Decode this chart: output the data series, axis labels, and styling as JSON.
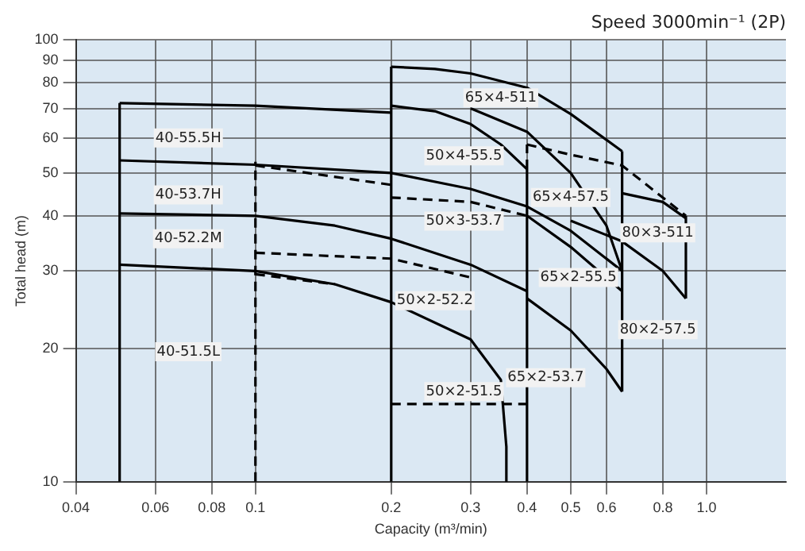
{
  "chart_data": {
    "type": "line",
    "title": "Speed 3000min⁻¹ (2P)",
    "xlabel": "Capacity (m³/min)",
    "ylabel": "Total head (m)",
    "log": "xy",
    "xlim": [
      0.04,
      1.5
    ],
    "ylim": [
      10,
      100
    ],
    "xticks": [
      0.04,
      0.06,
      0.08,
      0.1,
      0.2,
      0.3,
      0.4,
      0.5,
      0.6,
      0.8,
      {
        "value": 1,
        "label": "1.0"
      }
    ],
    "yticks": [
      10,
      20,
      30,
      40,
      50,
      60,
      70,
      80,
      90,
      100
    ],
    "grid": true,
    "legend": false,
    "marker": "none",
    "series": [
      {
        "color": "#000000",
        "line_style": "solid",
        "x": [
          0.05,
          0.1,
          0.2
        ],
        "values": [
          72,
          71,
          68.5
        ]
      },
      {
        "color": "#000000",
        "line_style": "solid",
        "x": [
          0.2,
          0.25,
          0.3,
          0.35,
          0.4
        ],
        "values": [
          71,
          69,
          64.5,
          58,
          51
        ]
      },
      {
        "color": "#000000",
        "line_style": "solid",
        "x": [
          0.2,
          0.25,
          0.3,
          0.4,
          0.5,
          0.65
        ],
        "values": [
          87,
          86,
          84,
          78,
          68,
          56
        ]
      },
      {
        "color": "#000000",
        "line_style": "dashed",
        "x": [
          0.4,
          0.5,
          0.65,
          0.9
        ],
        "values": [
          58,
          55,
          52,
          40
        ]
      },
      {
        "color": "#000000",
        "line_style": "solid",
        "x": [
          0.3,
          0.4,
          0.5,
          0.6,
          0.65
        ],
        "values": [
          70,
          62,
          50,
          38,
          30
        ]
      },
      {
        "color": "#000000",
        "line_style": "solid",
        "x": [
          0.05,
          0.1,
          0.2,
          0.3,
          0.4,
          0.5,
          0.65
        ],
        "values": [
          53.4,
          52.2,
          50,
          46,
          42,
          37,
          30
        ]
      },
      {
        "color": "#000000",
        "line_style": "dashed",
        "x": [
          0.1,
          0.2
        ],
        "values": [
          52,
          47
        ]
      },
      {
        "color": "#000000",
        "line_style": "dashed",
        "x": [
          0.2,
          0.3,
          0.4
        ],
        "values": [
          44,
          43,
          40
        ]
      },
      {
        "color": "#000000",
        "line_style": "solid",
        "x": [
          0.05,
          0.1,
          0.15,
          0.2,
          0.3,
          0.4
        ],
        "values": [
          40.5,
          40,
          38,
          35.5,
          31,
          27
        ]
      },
      {
        "color": "#000000",
        "line_style": "dashed",
        "x": [
          0.1,
          0.2,
          0.3
        ],
        "values": [
          33,
          32,
          29
        ]
      },
      {
        "color": "#000000",
        "line_style": "solid",
        "x": [
          0.05,
          0.1,
          0.15,
          0.2,
          0.3,
          0.35,
          0.36,
          0.36
        ],
        "values": [
          31,
          30,
          28,
          25.5,
          21,
          17,
          12,
          10
        ]
      },
      {
        "color": "#000000",
        "line_style": "dashed",
        "x": [
          0.1,
          0.15
        ],
        "values": [
          29.5,
          28
        ]
      },
      {
        "color": "#000000",
        "line_style": "solid",
        "x": [
          0.4,
          0.5,
          0.6,
          0.65
        ],
        "values": [
          26,
          22,
          18,
          16
        ]
      },
      {
        "color": "#000000",
        "line_style": "solid",
        "x": [
          0.4,
          0.5,
          0.65
        ],
        "values": [
          40,
          34,
          27
        ]
      },
      {
        "color": "#000000",
        "line_style": "solid",
        "x": [
          0.65,
          0.8,
          0.9
        ],
        "values": [
          45,
          43,
          39.5
        ]
      },
      {
        "color": "#000000",
        "line_style": "solid",
        "x": [
          0.5,
          0.65,
          0.8,
          0.9
        ],
        "values": [
          39,
          35,
          30,
          26
        ]
      },
      {
        "color": "#000000",
        "line_style": "dashed",
        "x": [
          0.2,
          0.4
        ],
        "values": [
          15,
          15
        ]
      },
      {
        "color": "#000000",
        "line_style": "solid",
        "x": [
          0.05,
          0.05
        ],
        "values": [
          10,
          72
        ]
      },
      {
        "color": "#000000",
        "line_style": "dashed",
        "x": [
          0.1,
          0.1
        ],
        "values": [
          10,
          53
        ]
      },
      {
        "color": "#000000",
        "line_style": "solid",
        "x": [
          0.2,
          0.2
        ],
        "values": [
          10,
          87
        ]
      },
      {
        "color": "#000000",
        "line_style": "solid",
        "x": [
          0.4,
          0.4
        ],
        "values": [
          10,
          51
        ]
      },
      {
        "color": "#000000",
        "line_style": "dashed",
        "x": [
          0.4,
          0.4
        ],
        "values": [
          51,
          58
        ]
      },
      {
        "color": "#000000",
        "line_style": "solid",
        "x": [
          0.65,
          0.65
        ],
        "values": [
          16,
          56
        ]
      },
      {
        "color": "#000000",
        "line_style": "solid",
        "x": [
          0.9,
          0.9
        ],
        "values": [
          26,
          40
        ]
      }
    ],
    "annotations": [
      "40-55.5H",
      "40-53.7H",
      "40-52.2M",
      "40-51.5L",
      "65×4-511",
      "50×4-55.5",
      "65×4-57.5",
      "50×3-53.7",
      "80×3-511",
      "65×2-55.5",
      "50×2-52.2",
      "80×2-57.5",
      "65×2-53.7",
      "50×2-51.5"
    ]
  }
}
